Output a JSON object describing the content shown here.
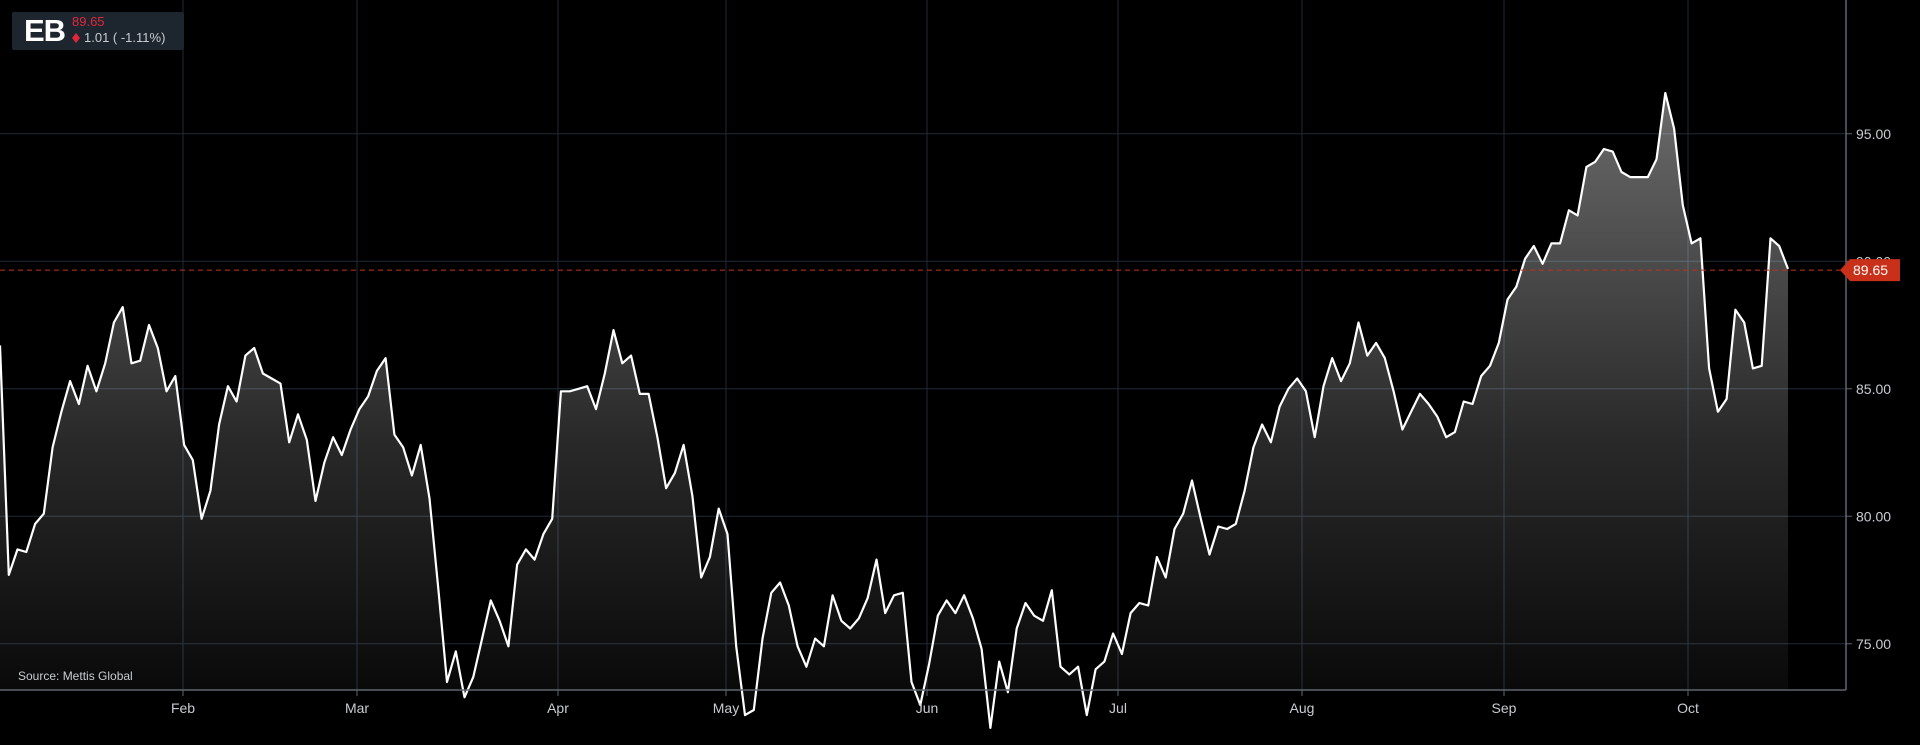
{
  "ticker": {
    "symbol": "EB",
    "price": "89.65",
    "change": "1.01 ( -1.11%)"
  },
  "source_note": "Source: Mettis Global",
  "last_price_marker": "89.65",
  "colors": {
    "background": "#000000",
    "line": "#ffffff",
    "grid": "#1e2a36",
    "axis": "#5c6670",
    "down": "#e0263b",
    "marker": "#c8301a"
  },
  "chart_data": {
    "type": "area",
    "title": "",
    "xlabel": "",
    "ylabel": "",
    "x_tick_labels": [
      "Feb",
      "Mar",
      "Apr",
      "May",
      "Jun",
      "Jul",
      "Aug",
      "Sep",
      "Oct"
    ],
    "y_tick_labels": [
      "75.00",
      "80.00",
      "85.00",
      "90.00",
      "95.00"
    ],
    "ylim": [
      70.5,
      97.5
    ],
    "last_price": 89.65,
    "grid": true,
    "y_axis_side": "right",
    "values": [
      86.7,
      77.7,
      78.7,
      78.6,
      79.7,
      80.1,
      82.7,
      84.1,
      85.3,
      84.4,
      85.9,
      84.9,
      86.0,
      87.6,
      88.2,
      86.0,
      86.1,
      87.5,
      86.6,
      84.9,
      85.5,
      82.8,
      82.2,
      79.9,
      81.0,
      83.6,
      85.1,
      84.5,
      86.3,
      86.6,
      85.6,
      85.4,
      85.2,
      82.9,
      84.0,
      83.0,
      80.6,
      82.1,
      83.1,
      82.4,
      83.4,
      84.2,
      84.7,
      85.7,
      86.2,
      83.2,
      82.7,
      81.6,
      82.8,
      80.7,
      77.2,
      73.5,
      74.7,
      72.9,
      73.7,
      75.2,
      76.7,
      75.9,
      74.9,
      78.1,
      78.7,
      78.3,
      79.3,
      79.9,
      84.9,
      84.9,
      85.0,
      85.1,
      84.2,
      85.6,
      87.3,
      86.0,
      86.3,
      84.8,
      84.8,
      83.1,
      81.1,
      81.7,
      82.8,
      80.8,
      77.6,
      78.4,
      80.3,
      79.3,
      74.9,
      72.2,
      72.4,
      75.2,
      77.0,
      77.4,
      76.5,
      74.9,
      74.1,
      75.2,
      74.9,
      76.9,
      75.9,
      75.6,
      76.0,
      76.8,
      78.3,
      76.2,
      76.9,
      77.0,
      73.5,
      72.6,
      74.2,
      76.1,
      76.7,
      76.2,
      76.9,
      76.0,
      74.8,
      71.7,
      74.3,
      73.1,
      75.6,
      76.6,
      76.1,
      75.9,
      77.1,
      74.1,
      73.8,
      74.1,
      72.2,
      74.0,
      74.3,
      75.4,
      74.6,
      76.2,
      76.6,
      76.5,
      78.4,
      77.6,
      79.5,
      80.1,
      81.4,
      79.9,
      78.5,
      79.6,
      79.5,
      79.7,
      81.0,
      82.7,
      83.6,
      82.9,
      84.3,
      85.0,
      85.4,
      84.9,
      83.1,
      85.1,
      86.2,
      85.3,
      86.0,
      87.6,
      86.3,
      86.8,
      86.2,
      84.9,
      83.4,
      84.1,
      84.8,
      84.4,
      83.9,
      83.1,
      83.3,
      84.5,
      84.4,
      85.5,
      85.9,
      86.8,
      88.5,
      89.0,
      90.1,
      90.6,
      89.9,
      90.7,
      90.7,
      92.0,
      91.8,
      93.7,
      93.9,
      94.4,
      94.3,
      93.5,
      93.3,
      93.3,
      93.3,
      94.0,
      96.6,
      95.2,
      92.2,
      90.7,
      90.9,
      85.8,
      84.1,
      84.6,
      88.1,
      87.6,
      85.8,
      85.9,
      90.9,
      90.6,
      89.7
    ]
  }
}
